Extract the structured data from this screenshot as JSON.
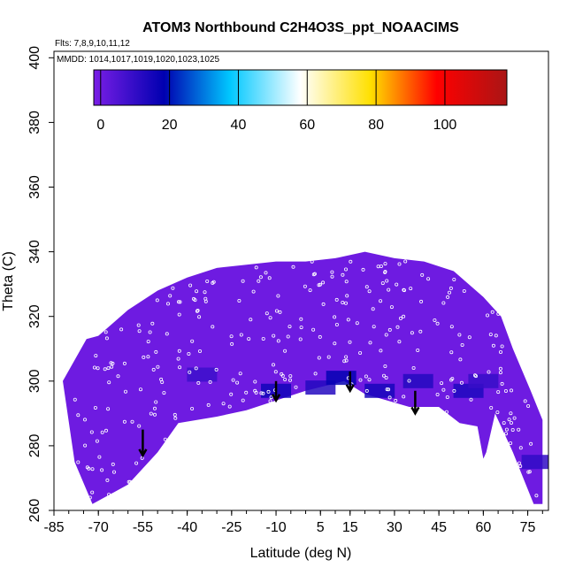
{
  "chart_data": {
    "type": "heatmap",
    "title": "ATOM3 Northbound C2H4O3S_ppt_NOAACIMS",
    "subtitle_flights": "Flts: 7,8,9,10,11,12",
    "subtitle_dates": "MMDD: 1014,1017,1019,1020,1023,1025",
    "xlabel": "Latitude (deg N)",
    "ylabel": "Theta (C)",
    "xlim": [
      -85,
      82
    ],
    "ylim": [
      260,
      402
    ],
    "x_ticks": [
      -85,
      -70,
      -55,
      -40,
      -25,
      -10,
      5,
      15,
      30,
      45,
      60,
      75
    ],
    "x_tick_labels": [
      "-85",
      "-70",
      "-55",
      "-40",
      "-25",
      "-10",
      "5",
      "15",
      "30",
      "45",
      "60",
      "75"
    ],
    "y_ticks": [
      260,
      280,
      300,
      320,
      340,
      360,
      380,
      400
    ],
    "y_tick_labels": [
      "260",
      "280",
      "300",
      "320",
      "340",
      "360",
      "380",
      "400"
    ],
    "colorbar": {
      "range": [
        -2,
        118
      ],
      "ticks": [
        0,
        20,
        40,
        60,
        80,
        100
      ],
      "tick_labels": [
        "0",
        "20",
        "40",
        "60",
        "80",
        "100"
      ],
      "colors": [
        "#7a1ee6",
        "#0000b0",
        "#00c8ff",
        "#ffffff",
        "#ffe000",
        "#ff0000",
        "#aa1515"
      ]
    },
    "region_boundary": {
      "top": [
        [
          -74,
          313
        ],
        [
          -70,
          314
        ],
        [
          -60,
          322
        ],
        [
          -50,
          328
        ],
        [
          -40,
          332
        ],
        [
          -30,
          335
        ],
        [
          -20,
          336
        ],
        [
          -10,
          337
        ],
        [
          0,
          337
        ],
        [
          10,
          338
        ],
        [
          20,
          340
        ],
        [
          30,
          338
        ],
        [
          40,
          337
        ],
        [
          50,
          334
        ],
        [
          60,
          326
        ],
        [
          66,
          320
        ],
        [
          70,
          310
        ],
        [
          76,
          297
        ],
        [
          80,
          288
        ]
      ],
      "bottom": [
        [
          80,
          262
        ],
        [
          77,
          262
        ],
        [
          70,
          278
        ],
        [
          64,
          290
        ],
        [
          61,
          278
        ],
        [
          60,
          276
        ],
        [
          58,
          286
        ],
        [
          52,
          287
        ],
        [
          45,
          292
        ],
        [
          35,
          292
        ],
        [
          20,
          296
        ],
        [
          13,
          300
        ],
        [
          0,
          297
        ],
        [
          -10,
          294
        ],
        [
          -20,
          291
        ],
        [
          -30,
          289
        ],
        [
          -43,
          287
        ],
        [
          -50,
          278
        ],
        [
          -60,
          268
        ],
        [
          -72,
          262
        ],
        [
          -78,
          275
        ],
        [
          -82,
          300
        ]
      ]
    },
    "high_value_patches": [
      {
        "lat": -10,
        "theta": 297,
        "value": 15
      },
      {
        "lat": 5,
        "theta": 298,
        "value": 12
      },
      {
        "lat": 12,
        "theta": 301,
        "value": 17
      },
      {
        "lat": 25,
        "theta": 297,
        "value": 14
      },
      {
        "lat": 38,
        "theta": 300,
        "value": 12
      },
      {
        "lat": 55,
        "theta": 297,
        "value": 13
      },
      {
        "lat": -35,
        "theta": 302,
        "value": 8
      },
      {
        "lat": 78,
        "theta": 275,
        "value": 10
      },
      {
        "lat": 60,
        "theta": 300,
        "value": 9
      }
    ],
    "arrows": [
      {
        "lat": -55,
        "theta_start": 285,
        "theta_end": 277
      },
      {
        "lat": -10,
        "theta_start": 300,
        "theta_end": 294
      },
      {
        "lat": 15,
        "theta_start": 303,
        "theta_end": 297
      },
      {
        "lat": 37,
        "theta_start": 297,
        "theta_end": 290
      }
    ]
  }
}
